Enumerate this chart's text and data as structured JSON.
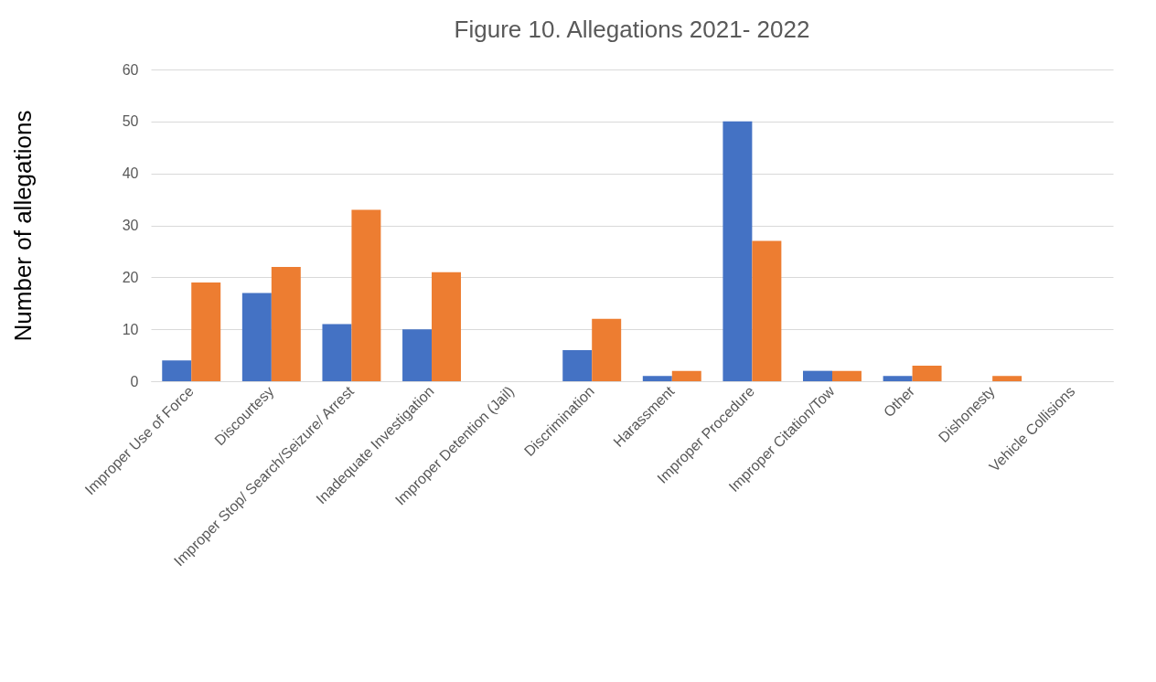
{
  "chart_data": {
    "type": "bar",
    "title": "Figure 10. Allegations 2021- 2022",
    "ylabel": "Number  of allegations",
    "categories": [
      "Improper Use of Force",
      "Discourtesy",
      "Improper Stop/ Search/Seizure/ Arrest",
      "Inadequate Investigation",
      "Improper Detention (Jail)",
      "Discrimination",
      "Harassment",
      "Improper Procedure",
      "Improper Citation/Tow",
      "Other",
      "Dishonesty",
      "Vehicle Collisions"
    ],
    "series": [
      {
        "color": "#4472c4",
        "values": [
          4,
          17,
          11,
          10,
          0,
          6,
          1,
          50,
          2,
          1,
          0,
          0
        ]
      },
      {
        "color": "#ed7d31",
        "values": [
          19,
          22,
          33,
          21,
          0,
          12,
          2,
          27,
          2,
          3,
          1,
          0
        ]
      }
    ],
    "ylim": [
      0,
      60
    ],
    "yticks": [
      0,
      10,
      20,
      30,
      40,
      50,
      60
    ],
    "grid": "y",
    "legend": false
  }
}
